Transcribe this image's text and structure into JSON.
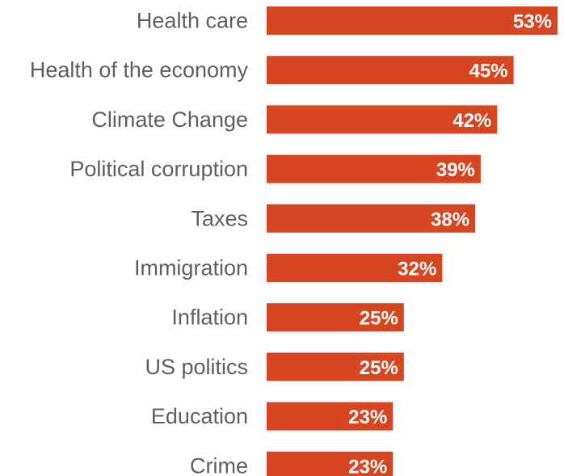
{
  "chart_data": {
    "type": "bar",
    "orientation": "horizontal",
    "categories": [
      "Health care",
      "Health of the economy",
      "Climate Change",
      "Political corruption",
      "Taxes",
      "Immigration",
      "Inflation",
      "US politics",
      "Education",
      "Crime"
    ],
    "values": [
      53,
      45,
      42,
      39,
      38,
      32,
      25,
      25,
      23,
      23
    ],
    "value_labels": [
      "53%",
      "45%",
      "42%",
      "39%",
      "38%",
      "32%",
      "25%",
      "25%",
      "23%",
      "23%"
    ],
    "unit": "%",
    "title": "",
    "xlabel": "",
    "ylabel": "",
    "xlim": [
      0,
      53
    ],
    "grid": false,
    "legend": "none",
    "bar_color": "#d54621",
    "value_label_color": "#ffffff",
    "category_label_color": "#5f5f5f"
  }
}
